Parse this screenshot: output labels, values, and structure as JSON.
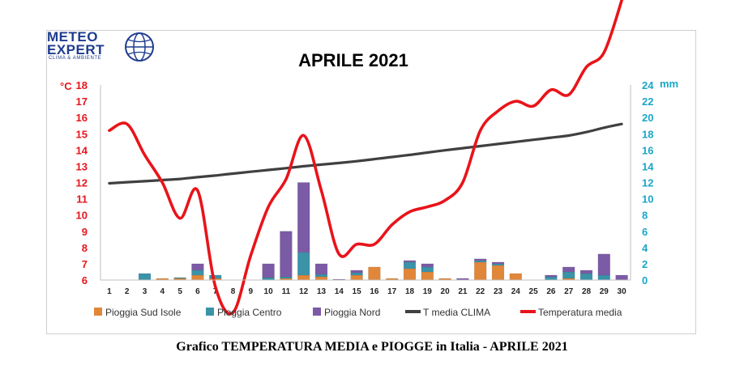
{
  "logo": {
    "brand_line1": "METEO",
    "brand_line2": "EXPERT",
    "tagline": "CLIMA & AMBIENTE",
    "color": "#1f3c8f"
  },
  "caption": "Grafico TEMPERATURA MEDIA e PIOGGE in Italia - APRILE 2021",
  "chart_data": {
    "type": "bar+line",
    "title": "APRILE 2021",
    "y_left_label": "°C",
    "y_left_range": [
      6,
      18
    ],
    "y_left_ticks": [
      "6",
      "7",
      "8",
      "9",
      "10",
      "11",
      "12",
      "13",
      "14",
      "15",
      "16",
      "17",
      "18"
    ],
    "y_right_label": "mm",
    "y_right_range": [
      0,
      24
    ],
    "y_right_ticks": [
      "0",
      "2",
      "4",
      "6",
      "8",
      "10",
      "12",
      "14",
      "16",
      "18",
      "20",
      "22",
      "24"
    ],
    "x": [
      "1",
      "2",
      "3",
      "4",
      "5",
      "6",
      "7",
      "8",
      "9",
      "10",
      "11",
      "12",
      "13",
      "14",
      "15",
      "16",
      "17",
      "18",
      "19",
      "20",
      "21",
      "22",
      "23",
      "24",
      "25",
      "26",
      "27",
      "28",
      "29",
      "30"
    ],
    "legend_position": "bottom",
    "colors": {
      "left_axis": "#e8141a",
      "right_axis": "#1aa6c8",
      "sud": "#e0873a",
      "centro": "#3b93a8",
      "nord": "#7b5aa6",
      "clima": "#404040",
      "temp": "#e8141a"
    },
    "bar_series": [
      {
        "name": "Pioggia Sud Isole",
        "key": "sud",
        "values": [
          0,
          0,
          0,
          0.2,
          0.2,
          0.6,
          0.2,
          0,
          0,
          0,
          0.2,
          0.6,
          0.4,
          0,
          0.6,
          1.6,
          0.2,
          1.4,
          1.0,
          0.2,
          0,
          2.2,
          1.8,
          0.8,
          0,
          0,
          0.2,
          0,
          0,
          0
        ]
      },
      {
        "name": "Pioggia Centro",
        "key": "centro",
        "values": [
          0,
          0,
          0.8,
          0,
          0.1,
          0.6,
          0.4,
          0,
          0,
          0.3,
          0.2,
          2.8,
          0.3,
          0,
          0.3,
          0,
          0,
          0.8,
          0.6,
          0,
          0,
          0.2,
          0.2,
          0,
          0,
          0.4,
          0.8,
          0.8,
          0.6,
          0
        ]
      },
      {
        "name": "Pioggia Nord",
        "key": "nord",
        "values": [
          0,
          0,
          0,
          0,
          0,
          0.8,
          0,
          0,
          0,
          1.7,
          5.6,
          8.6,
          1.3,
          0.1,
          0.3,
          0,
          0,
          0.2,
          0.4,
          0,
          0.2,
          0.2,
          0.2,
          0,
          0,
          0.2,
          0.6,
          0.4,
          2.6,
          0.6
        ]
      }
    ],
    "line_series": [
      {
        "name": "T media CLIMA",
        "key": "clima",
        "values": [
          11.95,
          12.02,
          12.08,
          12.15,
          12.22,
          12.33,
          12.43,
          12.55,
          12.66,
          12.77,
          12.88,
          13.0,
          13.1,
          13.2,
          13.31,
          13.44,
          13.57,
          13.7,
          13.84,
          13.98,
          14.11,
          14.24,
          14.37,
          14.5,
          14.63,
          14.76,
          14.89,
          15.1,
          15.37,
          15.6
        ]
      },
      {
        "name": "Temperatura media",
        "key": "temp",
        "values": [
          15.2,
          15.6,
          13.7,
          12.0,
          9.8,
          11.5,
          5.6,
          4.0,
          7.5,
          10.5,
          12.2,
          14.9,
          11.5,
          7.6,
          8.2,
          8.2,
          9.4,
          10.2,
          10.5,
          10.9,
          12.0,
          15.2,
          16.4,
          17.0,
          16.7,
          17.7,
          17.4,
          19.1,
          20.0,
          23.2
        ]
      }
    ],
    "temp_plot_note": ""
  }
}
